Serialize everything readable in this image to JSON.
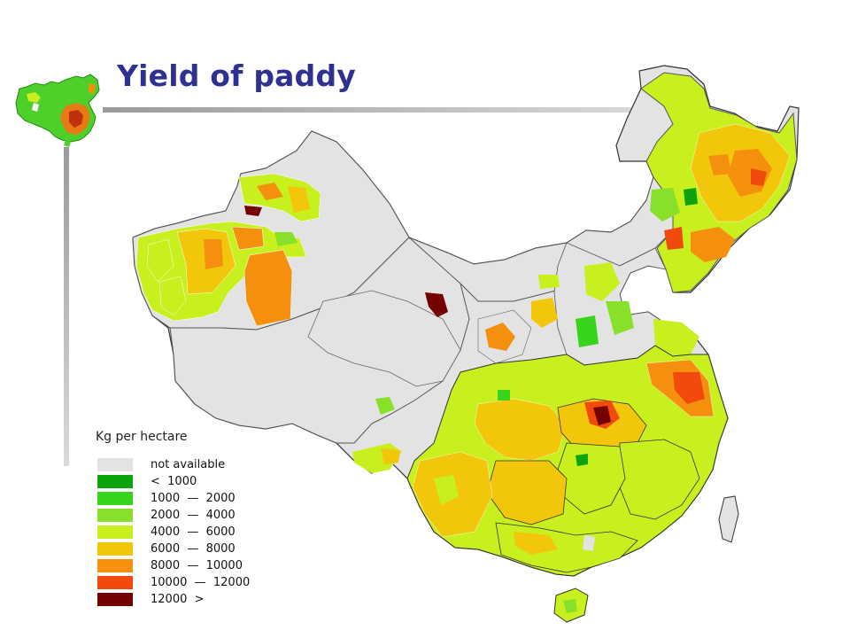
{
  "slide": {
    "title": "Yield of paddy"
  },
  "legend": {
    "title": "Kg per hectare",
    "items": [
      {
        "label": "not available",
        "color": "#e3e3e3"
      },
      {
        "label": "<  1000",
        "color": "#0ca30c"
      },
      {
        "label": "1000  —  2000",
        "color": "#38d41c"
      },
      {
        "label": "2000  —  4000",
        "color": "#88e02a"
      },
      {
        "label": "4000  —  6000",
        "color": "#c8ef1e"
      },
      {
        "label": "6000  —  8000",
        "color": "#f2c70b"
      },
      {
        "label": "8000  —  10000",
        "color": "#f5900f"
      },
      {
        "label": "10000  —  12000",
        "color": "#f14a0c"
      },
      {
        "label": "12000  >",
        "color": "#740000"
      }
    ]
  },
  "colors": {
    "title": "#2e3192",
    "border": "#333333",
    "not_available": "#e3e3e3"
  }
}
